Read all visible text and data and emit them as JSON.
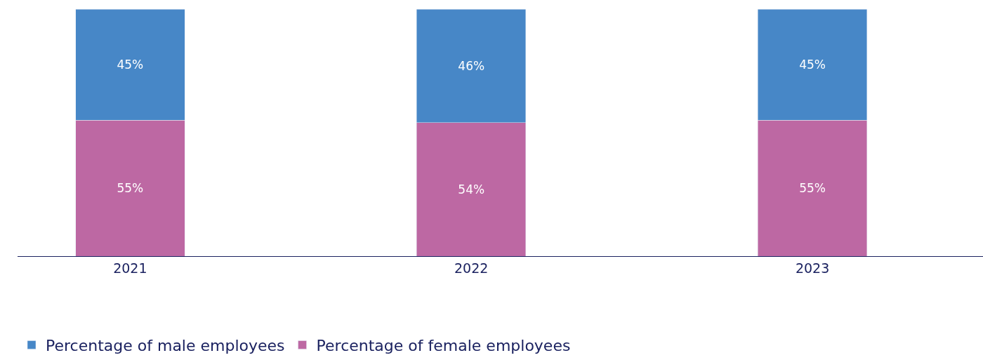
{
  "chart_data": {
    "type": "bar",
    "stacked": true,
    "categories": [
      "2021",
      "2022",
      "2023"
    ],
    "series": [
      {
        "name": "Percentage of female employees",
        "color": "#bd68a3",
        "values": [
          55,
          54,
          55
        ],
        "value_labels": [
          "55%",
          "54%",
          "55%"
        ]
      },
      {
        "name": "Percentage of male employees",
        "color": "#4787c7",
        "values": [
          45,
          46,
          45
        ],
        "value_labels": [
          "45%",
          "46%",
          "45%"
        ]
      }
    ],
    "legend": "bottom left"
  }
}
